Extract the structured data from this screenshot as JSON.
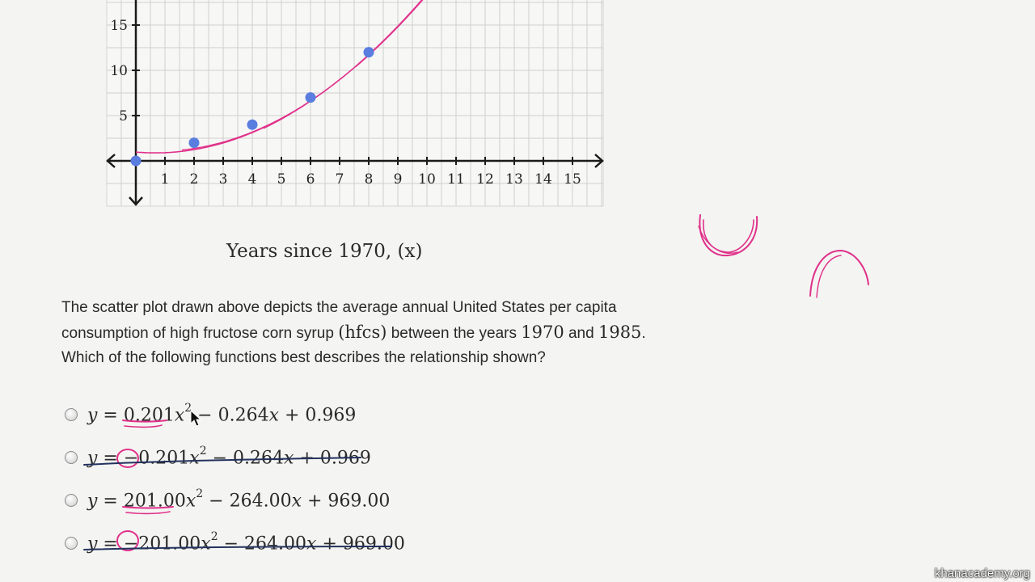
{
  "chart_data": {
    "type": "scatter",
    "xlabel": "Years since 1970, (x)",
    "ylabel": "",
    "x_ticks": [
      "1",
      "2",
      "3",
      "4",
      "5",
      "6",
      "7",
      "8",
      "9",
      "10",
      "11",
      "12",
      "13",
      "14",
      "15"
    ],
    "y_ticks": [
      "5",
      "10",
      "15"
    ],
    "xlim": [
      0,
      16
    ],
    "ylim": [
      0,
      18
    ],
    "grid": true,
    "series": [
      {
        "name": "hfcs per capita",
        "x": [
          0,
          2,
          4,
          6,
          8
        ],
        "y": [
          0,
          2,
          4,
          7,
          12
        ]
      }
    ],
    "fit_curve": {
      "a": 0.201,
      "b": -0.264,
      "c": 0.969
    }
  },
  "question": {
    "line1": "The scatter plot drawn above depicts the average annual United States per capita",
    "line2_a": "consumption of high fructose corn syrup ",
    "line2_math1": "(hfcs)",
    "line2_b": " between the years ",
    "line2_math2": "1970",
    "line2_c": " and ",
    "line2_math3": "1985",
    "line2_d": ".",
    "line3": "Which of the following functions best describes the relationship shown?"
  },
  "choices": [
    {
      "y": "y",
      "eq": " = ",
      "coef": "0.201",
      "x": "x",
      "exp": "2",
      "rest1": " − 0.264",
      "x2": "x",
      "rest2": " + 0.969"
    },
    {
      "y": "y",
      "eq": " = ",
      "coef": "−0.201",
      "x": "x",
      "exp": "2",
      "rest1": " − 0.264",
      "x2": "x",
      "rest2": " + 0.969"
    },
    {
      "y": "y",
      "eq": " = ",
      "coef": "201.00",
      "x": "x",
      "exp": "2",
      "rest1": " − 264.00",
      "x2": "x",
      "rest2": " + 969.00"
    },
    {
      "y": "y",
      "eq": " = ",
      "coef": "−201.00",
      "x": "x",
      "exp": "2",
      "rest1": " − 264.00",
      "x2": "x",
      "rest2": " + 969.00"
    }
  ],
  "watermark": "khanacademy.org",
  "colors": {
    "point": "#5a7de0",
    "ink_pink": "#e0308a",
    "ink_navy": "#23325e",
    "axis": "#1a1a1a",
    "grid": "#cfcfcf"
  }
}
